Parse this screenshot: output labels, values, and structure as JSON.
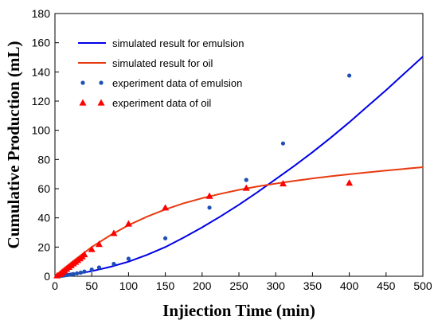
{
  "chart_data": {
    "type": "scatter",
    "title": "",
    "xlabel": "Injiection Time (min)",
    "ylabel": "Cumulative  Production (mL)",
    "xlim": [
      0,
      500
    ],
    "ylim": [
      0,
      180
    ],
    "xticks": [
      0,
      50,
      100,
      150,
      200,
      250,
      300,
      350,
      400,
      450,
      500
    ],
    "yticks": [
      0,
      20,
      40,
      60,
      80,
      100,
      120,
      140,
      160,
      180
    ],
    "grid": false,
    "legend_position": "upper-left",
    "series": [
      {
        "name": "simulated result for emulsion",
        "kind": "line",
        "color": "#0000e6",
        "x": [
          0,
          25,
          50,
          75,
          100,
          125,
          150,
          175,
          200,
          225,
          250,
          275,
          300,
          325,
          350,
          375,
          400,
          425,
          450,
          475,
          500
        ],
        "y": [
          0,
          1.2,
          3.5,
          6.4,
          10.0,
          14.6,
          20.0,
          26.5,
          33.5,
          41.0,
          49.0,
          57.5,
          66.5,
          75.5,
          85.0,
          95.0,
          105.5,
          116.5,
          127.5,
          139.0,
          150.5
        ]
      },
      {
        "name": "simulated result for oil",
        "kind": "line",
        "color": "#e83a10",
        "x": [
          0,
          10,
          25,
          50,
          75,
          100,
          125,
          150,
          175,
          200,
          225,
          250,
          275,
          300,
          325,
          350,
          375,
          400,
          425,
          450,
          475,
          500
        ],
        "y": [
          0,
          4.5,
          10.5,
          20.0,
          28.0,
          35.0,
          40.8,
          45.8,
          50.0,
          53.5,
          56.5,
          59.2,
          61.5,
          63.5,
          65.3,
          67.0,
          68.5,
          69.9,
          71.2,
          72.4,
          73.6,
          74.7
        ]
      },
      {
        "name": "experiment data of emulsion",
        "kind": "scatter",
        "marker": "circle",
        "color": "#1f4fb5",
        "x": [
          3,
          7,
          10,
          13,
          16,
          19,
          22,
          25,
          30,
          35,
          40,
          50,
          60,
          80,
          100,
          150,
          210,
          260,
          310,
          400
        ],
        "y": [
          0.2,
          0.3,
          0.4,
          0.6,
          0.8,
          1.0,
          1.2,
          1.5,
          2.0,
          2.5,
          3.2,
          4.6,
          6.0,
          8.5,
          12.0,
          26.0,
          47.0,
          66.0,
          91.0,
          137.5
        ]
      },
      {
        "name": "experiment data of oil",
        "kind": "scatter",
        "marker": "triangle",
        "color": "#ff0000",
        "x": [
          3,
          7,
          10,
          13,
          16,
          19,
          22,
          25,
          28,
          31,
          34,
          37,
          40,
          50,
          60,
          80,
          100,
          150,
          210,
          260,
          310,
          400
        ],
        "y": [
          0.5,
          1.5,
          2.5,
          3.8,
          5.0,
          6.3,
          7.5,
          8.7,
          9.8,
          11.0,
          12.2,
          13.5,
          15.0,
          18.5,
          22.0,
          29.5,
          36.0,
          47.0,
          55.0,
          60.5,
          63.5,
          64.0
        ]
      }
    ]
  }
}
